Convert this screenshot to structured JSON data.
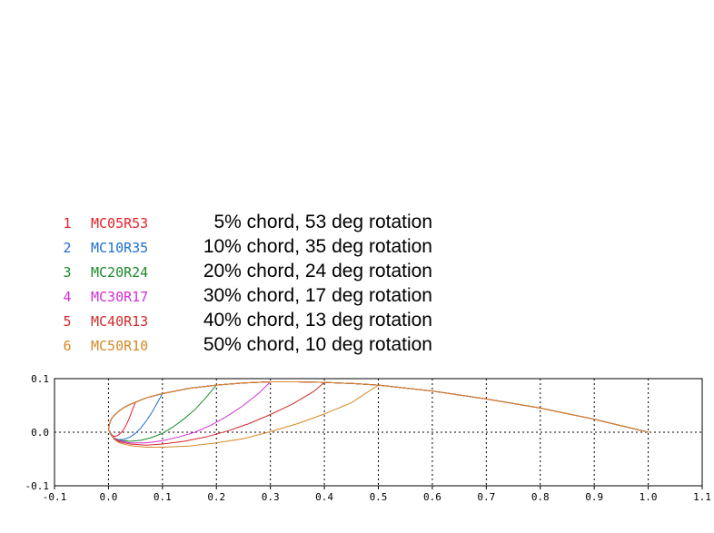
{
  "chart_data": {
    "type": "line",
    "title": "",
    "xlabel": "",
    "ylabel": "",
    "xlim": [
      -0.1,
      1.1
    ],
    "ylim": [
      -0.1,
      0.1
    ],
    "x_ticks": [
      "-0.1",
      "0.0",
      "0.1",
      "0.2",
      "0.3",
      "0.4",
      "0.5",
      "0.6",
      "0.7",
      "0.8",
      "0.9",
      "1.0",
      "1.1"
    ],
    "y_ticks": [
      "-0.1",
      "0.0",
      "0.1"
    ],
    "grid": true,
    "legend_position": "top-left",
    "upper_surface": {
      "x": [
        0.0,
        0.002,
        0.005,
        0.01,
        0.02,
        0.03,
        0.04,
        0.05,
        0.07,
        0.1,
        0.15,
        0.2,
        0.25,
        0.3,
        0.35,
        0.4,
        0.45,
        0.5,
        0.6,
        0.7,
        0.8,
        0.9,
        1.0
      ],
      "y": [
        0.005,
        0.016,
        0.024,
        0.031,
        0.04,
        0.047,
        0.052,
        0.056,
        0.064,
        0.072,
        0.082,
        0.088,
        0.092,
        0.094,
        0.094,
        0.093,
        0.091,
        0.088,
        0.077,
        0.062,
        0.045,
        0.024,
        0.0
      ]
    },
    "series": [
      {
        "id": "1",
        "name": "MC05R53",
        "description": "5% chord, 53 deg rotation",
        "color": "#e8202a",
        "x": [
          0.0,
          0.005,
          0.01,
          0.015,
          0.02,
          0.025,
          0.03,
          0.035,
          0.04,
          0.045,
          0.05
        ],
        "y": [
          0.005,
          -0.004,
          -0.008,
          -0.007,
          -0.004,
          0.001,
          0.008,
          0.018,
          0.03,
          0.044,
          0.056
        ]
      },
      {
        "id": "2",
        "name": "MC10R35",
        "description": "10% chord, 35 deg rotation",
        "color": "#1e6fd0",
        "x": [
          0.0,
          0.005,
          0.01,
          0.02,
          0.03,
          0.04,
          0.05,
          0.06,
          0.07,
          0.08,
          0.09,
          0.1
        ],
        "y": [
          0.005,
          -0.006,
          -0.011,
          -0.014,
          -0.013,
          -0.009,
          -0.002,
          0.008,
          0.021,
          0.036,
          0.054,
          0.072
        ]
      },
      {
        "id": "3",
        "name": "MC20R24",
        "description": "20% chord, 24 deg rotation",
        "color": "#1a8a2a",
        "x": [
          0.0,
          0.01,
          0.02,
          0.04,
          0.06,
          0.08,
          0.1,
          0.12,
          0.14,
          0.16,
          0.18,
          0.2
        ],
        "y": [
          0.005,
          -0.011,
          -0.015,
          -0.017,
          -0.015,
          -0.01,
          -0.002,
          0.01,
          0.025,
          0.042,
          0.064,
          0.088
        ]
      },
      {
        "id": "4",
        "name": "MC30R17",
        "description": "30% chord, 17 deg rotation",
        "color": "#d030d0",
        "x": [
          0.0,
          0.01,
          0.02,
          0.04,
          0.07,
          0.1,
          0.13,
          0.16,
          0.19,
          0.22,
          0.25,
          0.28,
          0.3
        ],
        "y": [
          0.005,
          -0.011,
          -0.016,
          -0.02,
          -0.02,
          -0.016,
          -0.009,
          0.0,
          0.013,
          0.03,
          0.05,
          0.074,
          0.094
        ]
      },
      {
        "id": "5",
        "name": "MC40R13",
        "description": "40% chord, 13 deg rotation",
        "color": "#d02a2a",
        "x": [
          0.0,
          0.01,
          0.02,
          0.04,
          0.07,
          0.1,
          0.14,
          0.18,
          0.22,
          0.26,
          0.3,
          0.34,
          0.38,
          0.4
        ],
        "y": [
          0.005,
          -0.012,
          -0.018,
          -0.022,
          -0.024,
          -0.022,
          -0.017,
          -0.009,
          0.002,
          0.016,
          0.033,
          0.052,
          0.076,
          0.093
        ]
      },
      {
        "id": "6",
        "name": "MC50R10",
        "description": "50% chord, 10 deg rotation",
        "color": "#d58a26",
        "x": [
          0.0,
          0.01,
          0.02,
          0.04,
          0.07,
          0.1,
          0.15,
          0.2,
          0.25,
          0.3,
          0.35,
          0.4,
          0.45,
          0.5
        ],
        "y": [
          0.005,
          -0.013,
          -0.02,
          -0.025,
          -0.028,
          -0.028,
          -0.026,
          -0.02,
          -0.012,
          0.001,
          0.016,
          0.034,
          0.055,
          0.088
        ]
      }
    ]
  }
}
